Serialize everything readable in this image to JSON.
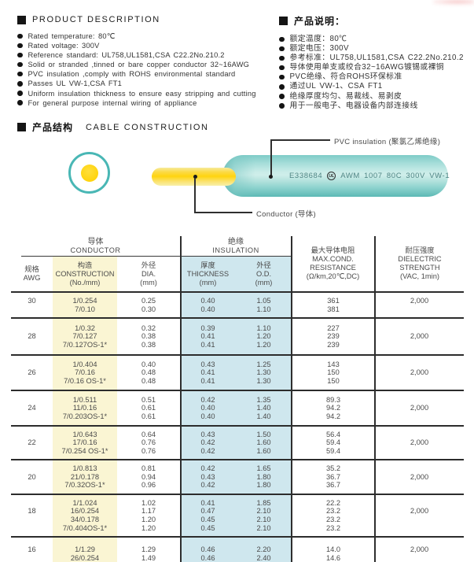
{
  "desc_en": {
    "title": "PRODUCT DESCRIPTION",
    "items": [
      "Rated temperature: 80℃",
      "Rated voltage: 300V",
      "Reference standard: UL758,UL1581,CSA C22.2No.210.2",
      "Solid or stranded ,tinned or bare copper conductor 32~16AWG",
      "PVC insulation ,comply with ROHS environmental standard",
      "Passes UL VW-1,CSA FT1",
      "Uniform insulation thickness to ensure easy stripping and cutting",
      "For general purpose internal wiring of appliance"
    ]
  },
  "desc_cn": {
    "title": "产品说明：",
    "items": [
      "额定温度：80℃",
      "额定电压：300V",
      "参考标准：UL758,UL1581,CSA C22.2No.210.2",
      "导体使用单支或绞合32~16AWG镀锡或裸铜",
      "PVC绝缘、符合ROHS环保标准",
      "通过UL VW-1、CSA FT1",
      "绝缘厚度均匀、易裁线、易剥皮",
      "用于一般电子、电器设备内部连接线"
    ]
  },
  "construction": {
    "title_cn": "产品结构",
    "title_en": "CABLE CONSTRUCTION",
    "cable_print": {
      "cert_no": "E338684",
      "ul_mark": "UL",
      "spec": "AWM 1007 80C 300V VW-1"
    },
    "labels": {
      "insulation": "PVC insulation (聚氯乙烯绝缘)",
      "conductor": "Conductor (导体)"
    },
    "colors": {
      "insulation_teal": "#49b7b5",
      "conductor_yellow": "#ffd40e"
    }
  },
  "table": {
    "group_headers": {
      "conductor_cn": "导体",
      "conductor_en": "CONDUCTOR",
      "insulation_cn": "绝缘",
      "insulation_en": "INSULATION"
    },
    "columns": [
      {
        "id": "awg",
        "lines": [
          "规格",
          "AWG"
        ]
      },
      {
        "id": "construction",
        "lines": [
          "构造",
          "CONSTRUCTION",
          "(No./mm)"
        ]
      },
      {
        "id": "dia",
        "lines": [
          "外径",
          "DIA.",
          "(mm)"
        ]
      },
      {
        "id": "thickness",
        "lines": [
          "厚度",
          "THICKNESS",
          "(mm)"
        ]
      },
      {
        "id": "od",
        "lines": [
          "外径",
          "O.D.",
          "(mm)"
        ]
      },
      {
        "id": "resistance",
        "lines": [
          "最大导体电阻",
          "MAX.COND.",
          "RESISTANCE",
          "(Ω/km,20℃,DC)"
        ]
      },
      {
        "id": "strength",
        "lines": [
          "耐压强度",
          "DIELECTRIC",
          "STRENGTH",
          "(VAC, 1min)"
        ]
      }
    ],
    "highlight_colors": {
      "construction_bg": "#faf5d3",
      "insulation_bg": "#cfe7ee"
    },
    "rows": [
      {
        "awg": "30",
        "construction": [
          "1/0.254",
          "7/0.10"
        ],
        "dia": [
          "0.25",
          "0.30"
        ],
        "thickness": [
          "0.40",
          "0.40"
        ],
        "od": [
          "1.05",
          "1.10"
        ],
        "resistance": [
          "361",
          "381"
        ],
        "strength": "2,000"
      },
      {
        "awg": "28",
        "construction": [
          "1/0.32",
          "7/0.127",
          "7/0.127OS-1*"
        ],
        "dia": [
          "0.32",
          "0.38",
          "0.38"
        ],
        "thickness": [
          "0.39",
          "0.41",
          "0.41"
        ],
        "od": [
          "1.10",
          "1.20",
          "1.20"
        ],
        "resistance": [
          "227",
          "239",
          "239"
        ],
        "strength": "2,000"
      },
      {
        "awg": "26",
        "construction": [
          "1/0.404",
          "7/0.16",
          "7/0.16 OS-1*"
        ],
        "dia": [
          "0.40",
          "0.48",
          "0.48"
        ],
        "thickness": [
          "0.43",
          "0.41",
          "0.41"
        ],
        "od": [
          "1.25",
          "1.30",
          "1.30"
        ],
        "resistance": [
          "143",
          "150",
          "150"
        ],
        "strength": "2,000"
      },
      {
        "awg": "24",
        "construction": [
          "1/0.511",
          "11/0.16",
          "7/0.203OS-1*"
        ],
        "dia": [
          "0.51",
          "0.61",
          "0.61"
        ],
        "thickness": [
          "0.42",
          "0.40",
          "0.40"
        ],
        "od": [
          "1.35",
          "1.40",
          "1.40"
        ],
        "resistance": [
          "89.3",
          "94.2",
          "94.2"
        ],
        "strength": "2,000"
      },
      {
        "awg": "22",
        "construction": [
          "1/0.643",
          "17/0.16",
          "7/0.254 OS-1*"
        ],
        "dia": [
          "0.64",
          "0.76",
          "0.76"
        ],
        "thickness": [
          "0.43",
          "0.42",
          "0.42"
        ],
        "od": [
          "1.50",
          "1.60",
          "1.60"
        ],
        "resistance": [
          "56.4",
          "59.4",
          "59.4"
        ],
        "strength": "2,000"
      },
      {
        "awg": "20",
        "construction": [
          "1/0.813",
          "21/0.178",
          "7/0.32OS-1*"
        ],
        "dia": [
          "0.81",
          "0.94",
          "0.96"
        ],
        "thickness": [
          "0.42",
          "0.43",
          "0.42"
        ],
        "od": [
          "1.65",
          "1.80",
          "1.80"
        ],
        "resistance": [
          "35.2",
          "36.7",
          "36.7"
        ],
        "strength": "2,000"
      },
      {
        "awg": "18",
        "construction": [
          "1/1.024",
          "16/0.254",
          "34/0.178",
          "7/0.404OS-1*"
        ],
        "dia": [
          "1.02",
          "1.17",
          "1.20",
          "1.20"
        ],
        "thickness": [
          "0.41",
          "0.47",
          "0.45",
          "0.45"
        ],
        "od": [
          "1.85",
          "2.10",
          "2.10",
          "2.10"
        ],
        "resistance": [
          "22.2",
          "23.2",
          "23.2",
          "23.2"
        ],
        "strength": "2,000"
      },
      {
        "awg": "16",
        "construction": [
          "1/1.29",
          "26/0.254"
        ],
        "dia": [
          "1.29",
          "1.49"
        ],
        "thickness": [
          "0.46",
          "0.46"
        ],
        "od": [
          "2.20",
          "2.40"
        ],
        "resistance": [
          "14.0",
          "14.6"
        ],
        "strength": "2,000"
      }
    ]
  }
}
